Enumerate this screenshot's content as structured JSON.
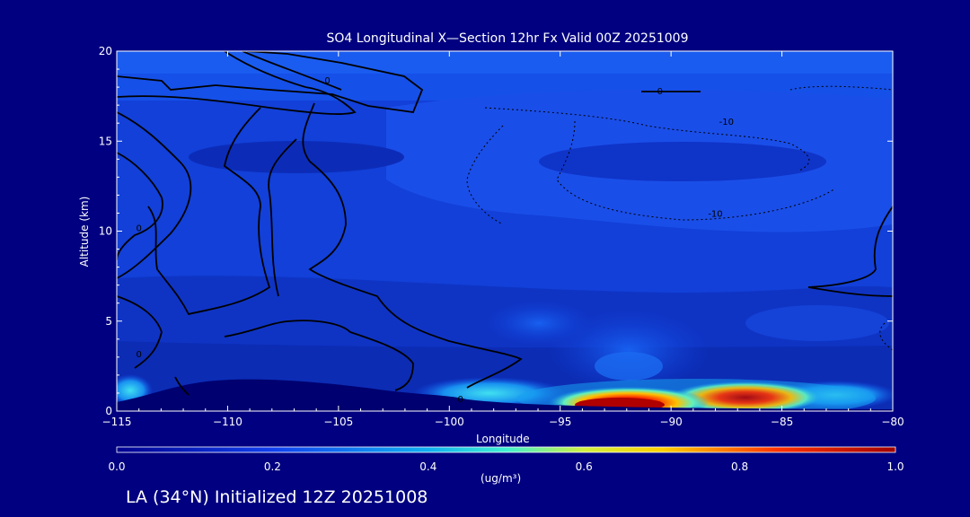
{
  "chart_data": {
    "type": "heatmap",
    "title": "SO4 Longitudinal X—Section 12hr  Fx Valid 00Z 20251009",
    "xlabel": "Longitude",
    "ylabel": "Altitude (km)",
    "xlim": [
      -115,
      -80
    ],
    "ylim": [
      0,
      20
    ],
    "x_ticks": [
      "−115",
      "−110",
      "−105",
      "−100",
      "−95",
      "−90",
      "−85",
      "−80"
    ],
    "y_ticks": [
      "0",
      "5",
      "10",
      "15",
      "20"
    ],
    "colorbar": {
      "ticks": [
        "0.0",
        "0.2",
        "0.4",
        "0.6",
        "0.8",
        "1.0"
      ],
      "range": [
        0,
        1
      ],
      "units": "(ug/m³)",
      "colors": [
        "#1010c8",
        "#1e48f0",
        "#18a8f0",
        "#30e8e0",
        "#c0ff40",
        "#ffe000",
        "#ff7000",
        "#e01000",
        "#a00000"
      ]
    },
    "high_concentration_band": {
      "lon": [
        -95,
        -84
      ],
      "alt": [
        0,
        1.2
      ],
      "peak_value": 0.85
    },
    "contour_labels": [
      {
        "text": "0",
        "lon": -105.5,
        "alt": 18.4
      },
      {
        "text": "0",
        "lon": -90.5,
        "alt": 17.8
      },
      {
        "text": "-10",
        "lon": -87.5,
        "alt": 16.1
      },
      {
        "text": "-10",
        "lon": -88,
        "alt": 11.0
      },
      {
        "text": "0",
        "lon": -114,
        "alt": 10.2
      },
      {
        "text": "0",
        "lon": -114,
        "alt": 3.2
      },
      {
        "text": "0",
        "lon": -99.5,
        "alt": 0.7
      }
    ]
  },
  "footer": {
    "caption": "LA (34°N) Initialized 12Z 20251008"
  }
}
